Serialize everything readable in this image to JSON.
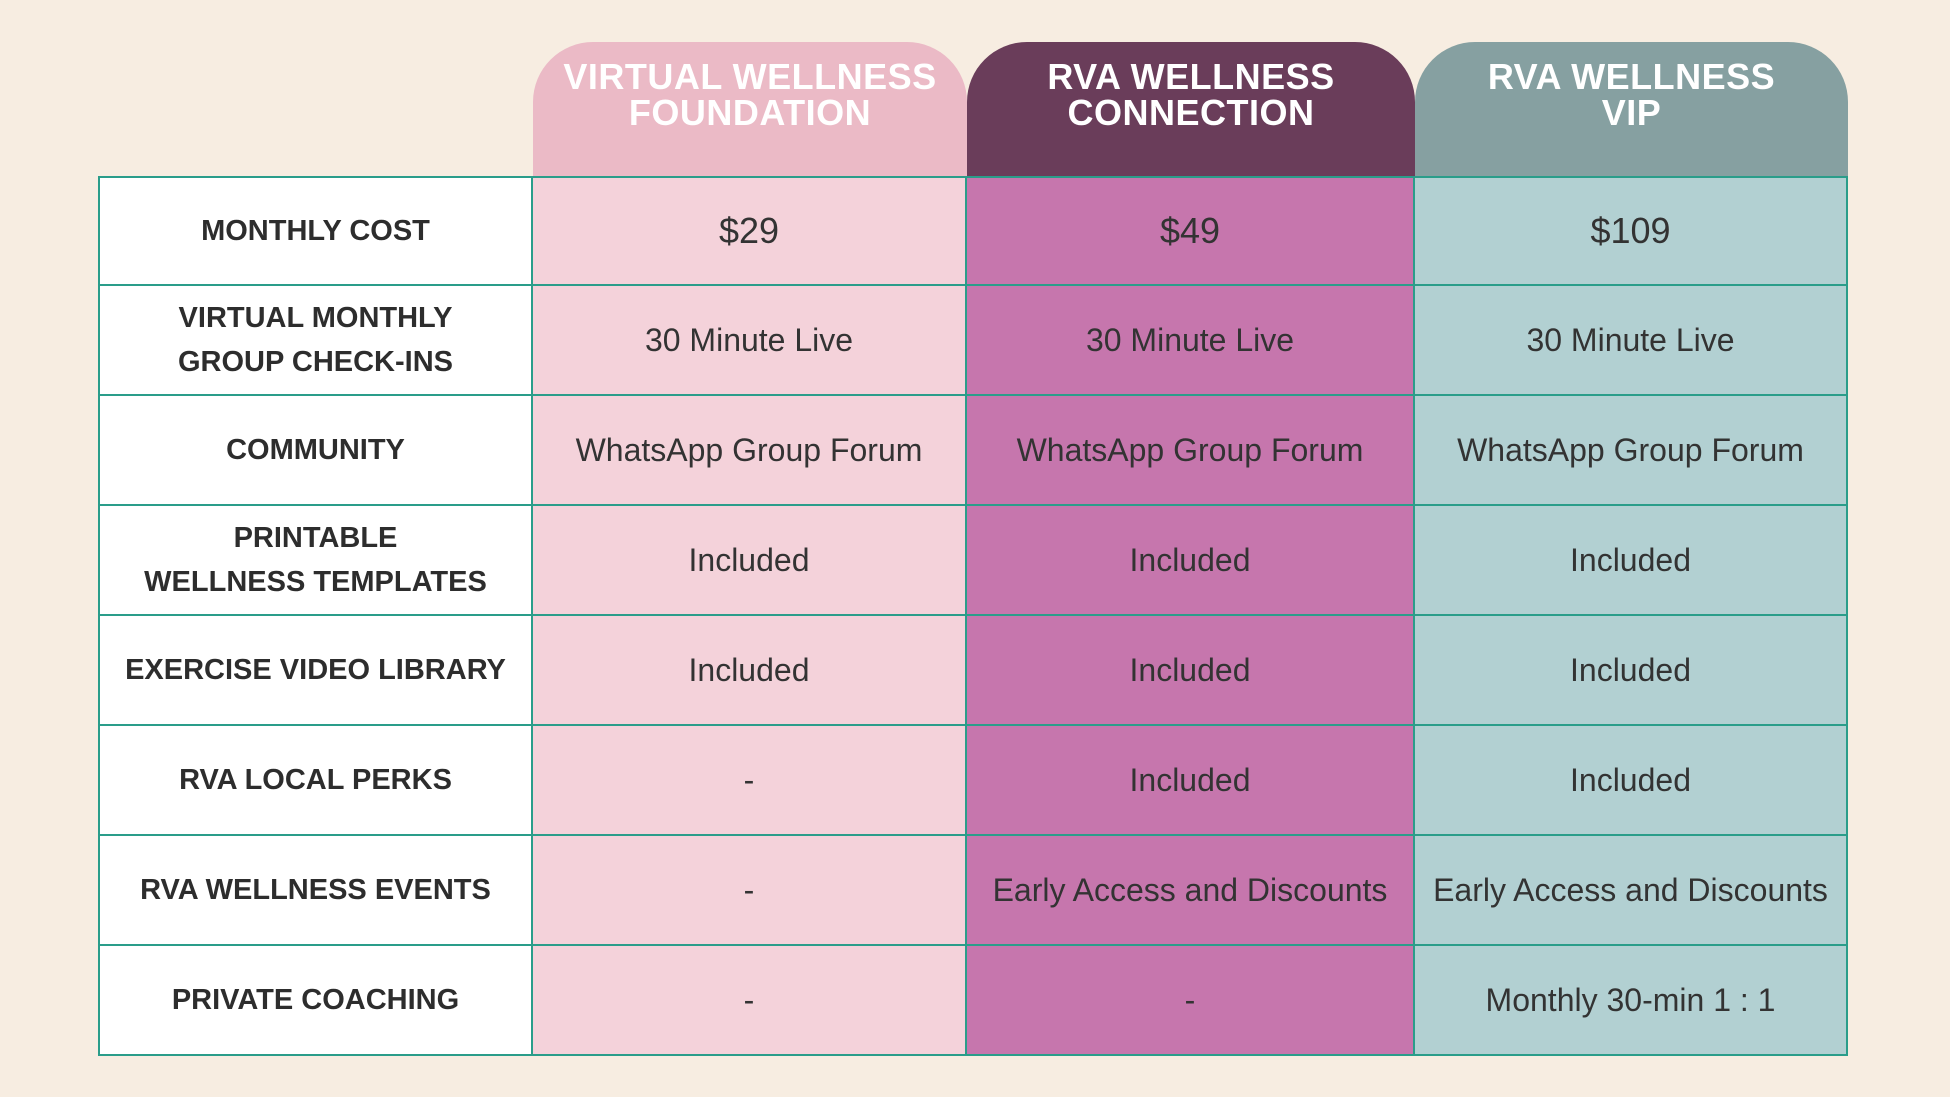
{
  "plans": [
    {
      "name": "VIRTUAL WELLNESS\nFOUNDATION"
    },
    {
      "name": "RVA WELLNESS\nCONNECTION"
    },
    {
      "name": "RVA WELLNESS\nVIP"
    }
  ],
  "rows": [
    {
      "label": "MONTHLY COST",
      "values": [
        "$29",
        "$49",
        "$109"
      ]
    },
    {
      "label": "VIRTUAL MONTHLY\nGROUP CHECK-INS",
      "values": [
        "30 Minute Live",
        "30 Minute Live",
        "30 Minute Live"
      ]
    },
    {
      "label": "COMMUNITY",
      "values": [
        "WhatsApp Group Forum",
        "WhatsApp Group Forum",
        "WhatsApp Group Forum"
      ]
    },
    {
      "label": "PRINTABLE\nWELLNESS TEMPLATES",
      "values": [
        "Included",
        "Included",
        "Included"
      ]
    },
    {
      "label": "EXERCISE VIDEO LIBRARY",
      "values": [
        "Included",
        "Included",
        "Included"
      ]
    },
    {
      "label": "RVA LOCAL PERKS",
      "values": [
        "-",
        "Included",
        "Included"
      ]
    },
    {
      "label": "RVA WELLNESS EVENTS",
      "values": [
        "-",
        "Early Access and Discounts",
        "Early Access and Discounts"
      ]
    },
    {
      "label": "PRIVATE COACHING",
      "values": [
        "-",
        "-",
        "Monthly 30-min 1 : 1"
      ]
    }
  ],
  "colors": {
    "background": "#f7ede1",
    "foundation_header": "#ebbac6",
    "connection_header": "#6a3d5a",
    "vip_header": "#86a0a1",
    "foundation_cell": "#f4d2da",
    "connection_cell": "#c676ad",
    "vip_cell": "#b2d0d2",
    "border": "#2a9d8a"
  }
}
